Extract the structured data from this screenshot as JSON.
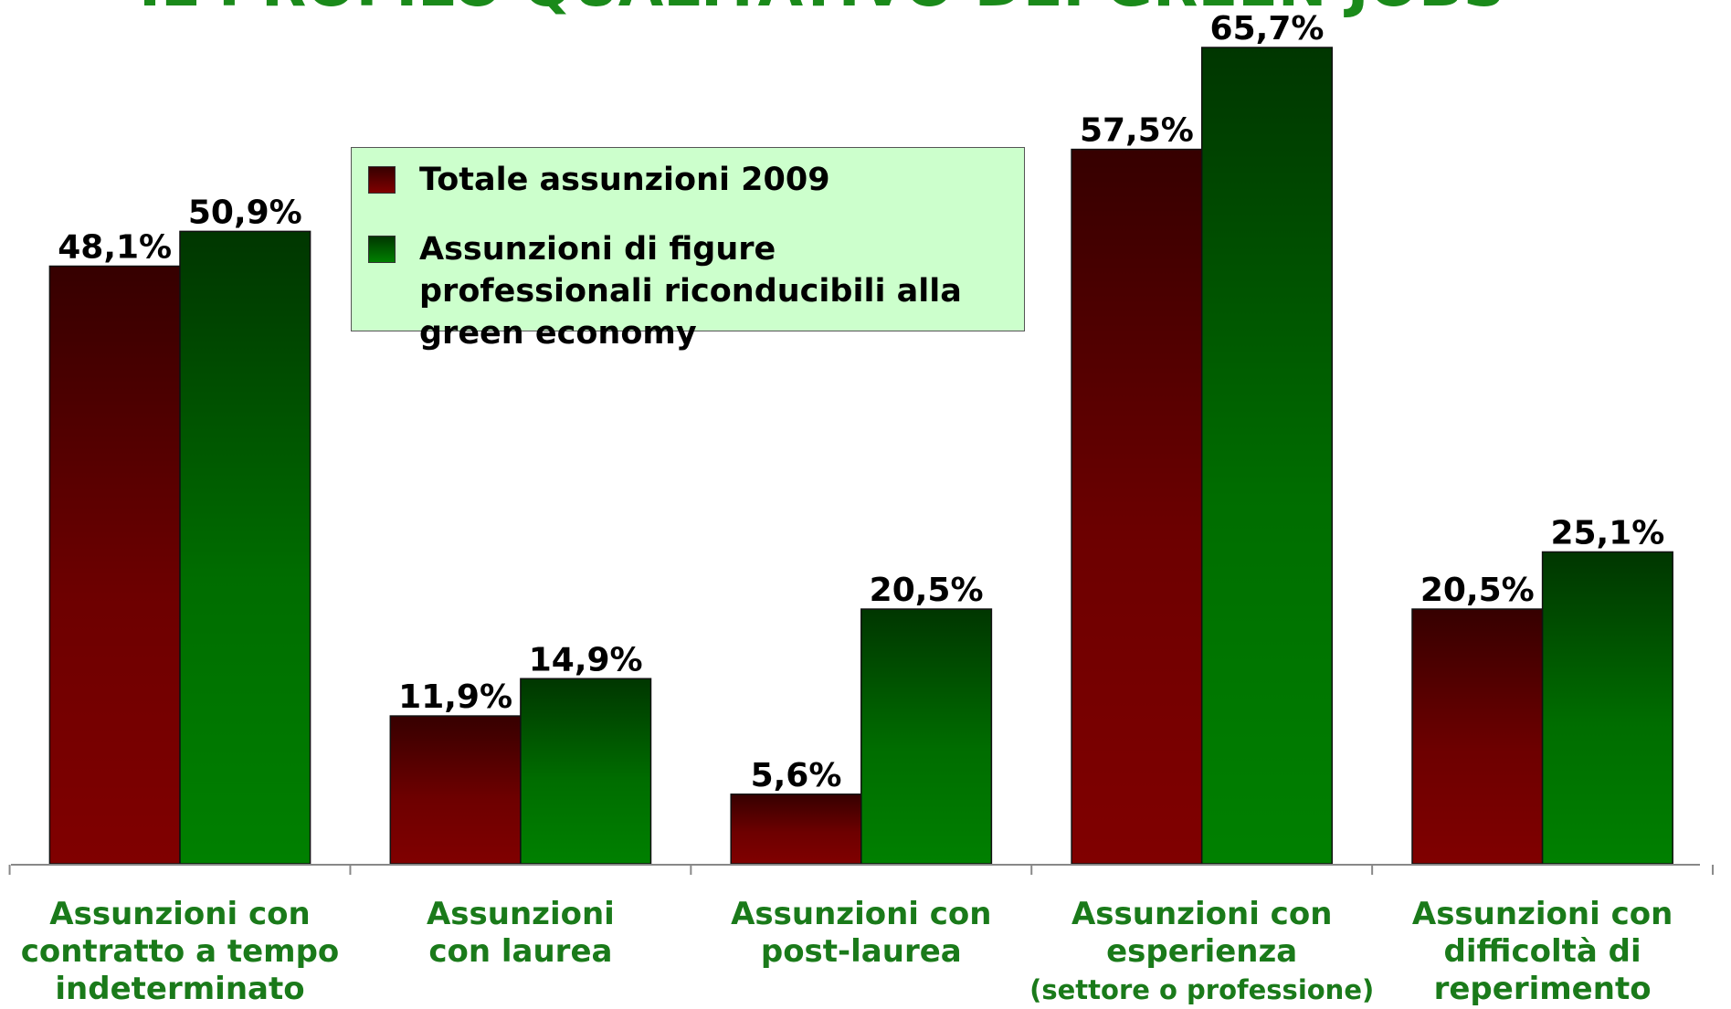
{
  "chart_data": {
    "type": "bar",
    "title": "IL PROFILO QUALITATIVO DEI GREEN JOBS",
    "categories": [
      [
        "Assunzioni con",
        "contratto a tempo",
        "indeterminato"
      ],
      [
        "Assunzioni",
        "con laurea"
      ],
      [
        "Assunzioni con",
        "post-laurea"
      ],
      [
        "Assunzioni con",
        "esperienza",
        "(settore o professione)"
      ],
      [
        "Assunzioni con",
        "difficoltà di",
        "reperimento"
      ]
    ],
    "series": [
      {
        "name": "Totale assunzioni 2009",
        "color": "#800000",
        "values": [
          48.1,
          11.9,
          5.6,
          57.5,
          20.5
        ],
        "value_labels": [
          "48,1%",
          "11,9%",
          "5,6%",
          "57,5%",
          "20,5%"
        ]
      },
      {
        "name": "Assunzioni di figure professionali riconducibili alla green economy",
        "color": "#008000",
        "values": [
          50.9,
          14.9,
          20.5,
          65.7,
          25.1
        ],
        "value_labels": [
          "50,9%",
          "14,9%",
          "20,5%",
          "65,7%",
          "25,1%"
        ]
      }
    ]
  }
}
